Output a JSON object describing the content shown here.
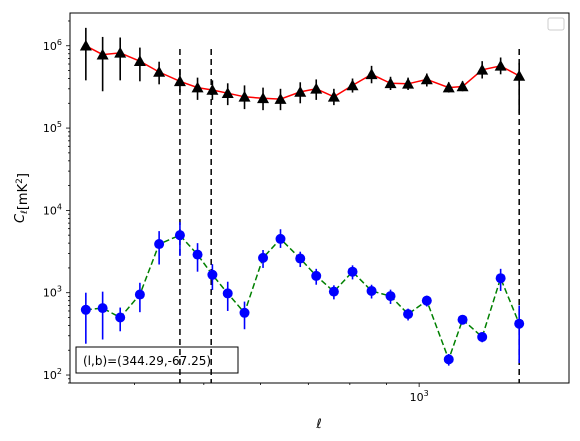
{
  "chart_data": {
    "type": "line",
    "xscale": "log",
    "yscale": "log",
    "xlabel": "ℓ",
    "ylabel": "C",
    "ylabel_sub": "ℓ",
    "ylabel_unit": "[mK",
    "ylabel_unit_sup": "2",
    "ylabel_unit_close": "]",
    "xlim": [
      325,
      1620
    ],
    "ylim": [
      80,
      2500000
    ],
    "x_ticks": [
      {
        "value": 1000,
        "base": "10",
        "exp": "3"
      }
    ],
    "y_ticks": [
      {
        "value": 100,
        "base": "10",
        "exp": "2"
      },
      {
        "value": 1000,
        "base": "10",
        "exp": "3"
      },
      {
        "value": 10000,
        "base": "10",
        "exp": "4"
      },
      {
        "value": 100000,
        "base": "10",
        "exp": "5"
      },
      {
        "value": 1000000,
        "base": "10",
        "exp": "6"
      }
    ],
    "grid": false,
    "legend": "top-right, empty",
    "vlines": [
      463,
      512,
      1380
    ],
    "series": [
      {
        "color": "#ff0000",
        "linestyle": "solid",
        "marker": "triangle",
        "marker_color": "#000000",
        "errorbar_color": "#000000",
        "points": [
          {
            "x": 342,
            "y": 1000000,
            "lo": 380000,
            "hi": 1650000
          },
          {
            "x": 361,
            "y": 780000,
            "lo": 280000,
            "hi": 1280000
          },
          {
            "x": 382,
            "y": 820000,
            "lo": 380000,
            "hi": 1260000
          },
          {
            "x": 407,
            "y": 650000,
            "lo": 370000,
            "hi": 950000
          },
          {
            "x": 433,
            "y": 480000,
            "lo": 340000,
            "hi": 640000
          },
          {
            "x": 463,
            "y": 370000,
            "lo": 270000,
            "hi": 520000
          },
          {
            "x": 490,
            "y": 310000,
            "lo": 220000,
            "hi": 410000
          },
          {
            "x": 514,
            "y": 290000,
            "lo": 220000,
            "hi": 380000
          },
          {
            "x": 540,
            "y": 265000,
            "lo": 190000,
            "hi": 350000
          },
          {
            "x": 570,
            "y": 240000,
            "lo": 170000,
            "hi": 330000
          },
          {
            "x": 605,
            "y": 230000,
            "lo": 165000,
            "hi": 310000
          },
          {
            "x": 640,
            "y": 225000,
            "lo": 165000,
            "hi": 300000
          },
          {
            "x": 682,
            "y": 275000,
            "lo": 200000,
            "hi": 360000
          },
          {
            "x": 718,
            "y": 300000,
            "lo": 220000,
            "hi": 390000
          },
          {
            "x": 760,
            "y": 240000,
            "lo": 190000,
            "hi": 300000
          },
          {
            "x": 807,
            "y": 330000,
            "lo": 270000,
            "hi": 400000
          },
          {
            "x": 858,
            "y": 450000,
            "lo": 350000,
            "hi": 570000
          },
          {
            "x": 912,
            "y": 350000,
            "lo": 290000,
            "hi": 420000
          },
          {
            "x": 965,
            "y": 345000,
            "lo": 290000,
            "hi": 410000
          },
          {
            "x": 1025,
            "y": 390000,
            "lo": 320000,
            "hi": 460000
          },
          {
            "x": 1100,
            "y": 310000,
            "lo": 270000,
            "hi": 360000
          },
          {
            "x": 1150,
            "y": 320000,
            "lo": 280000,
            "hi": 370000
          },
          {
            "x": 1225,
            "y": 510000,
            "lo": 400000,
            "hi": 650000
          },
          {
            "x": 1300,
            "y": 570000,
            "lo": 450000,
            "hi": 720000
          },
          {
            "x": 1380,
            "y": 430000,
            "lo": 150000,
            "hi": 620000
          }
        ]
      },
      {
        "color": "#008000",
        "linestyle": "dashed",
        "marker": "circle",
        "marker_color": "#0000ff",
        "errorbar_color": "#0000ff",
        "points": [
          {
            "x": 342,
            "y": 620,
            "lo": 240,
            "hi": 1000
          },
          {
            "x": 361,
            "y": 650,
            "lo": 270,
            "hi": 1030
          },
          {
            "x": 382,
            "y": 500,
            "lo": 340,
            "hi": 660
          },
          {
            "x": 407,
            "y": 950,
            "lo": 580,
            "hi": 1320
          },
          {
            "x": 433,
            "y": 3900,
            "lo": 2200,
            "hi": 5600
          },
          {
            "x": 463,
            "y": 5000,
            "lo": 2800,
            "hi": 7200
          },
          {
            "x": 490,
            "y": 2900,
            "lo": 1800,
            "hi": 4000
          },
          {
            "x": 514,
            "y": 1650,
            "lo": 1080,
            "hi": 2220
          },
          {
            "x": 540,
            "y": 980,
            "lo": 600,
            "hi": 1360
          },
          {
            "x": 570,
            "y": 570,
            "lo": 360,
            "hi": 780
          },
          {
            "x": 605,
            "y": 2650,
            "lo": 2000,
            "hi": 3300
          },
          {
            "x": 640,
            "y": 4500,
            "lo": 3500,
            "hi": 5900
          },
          {
            "x": 682,
            "y": 2600,
            "lo": 2050,
            "hi": 3150
          },
          {
            "x": 718,
            "y": 1600,
            "lo": 1250,
            "hi": 1950
          },
          {
            "x": 760,
            "y": 1030,
            "lo": 830,
            "hi": 1230
          },
          {
            "x": 807,
            "y": 1800,
            "lo": 1450,
            "hi": 2150
          },
          {
            "x": 858,
            "y": 1050,
            "lo": 850,
            "hi": 1250
          },
          {
            "x": 912,
            "y": 910,
            "lo": 730,
            "hi": 1090
          },
          {
            "x": 965,
            "y": 550,
            "lo": 460,
            "hi": 640
          },
          {
            "x": 1025,
            "y": 800,
            "lo": 680,
            "hi": 920
          },
          {
            "x": 1100,
            "y": 155,
            "lo": 130,
            "hi": 180
          },
          {
            "x": 1150,
            "y": 470,
            "lo": 420,
            "hi": 520
          },
          {
            "x": 1225,
            "y": 290,
            "lo": 250,
            "hi": 330
          },
          {
            "x": 1300,
            "y": 1500,
            "lo": 1050,
            "hi": 1950
          },
          {
            "x": 1380,
            "y": 420,
            "lo": 140,
            "hi": 700
          }
        ]
      }
    ],
    "annotation": "(l,b)=(344.29,-67.25)"
  }
}
